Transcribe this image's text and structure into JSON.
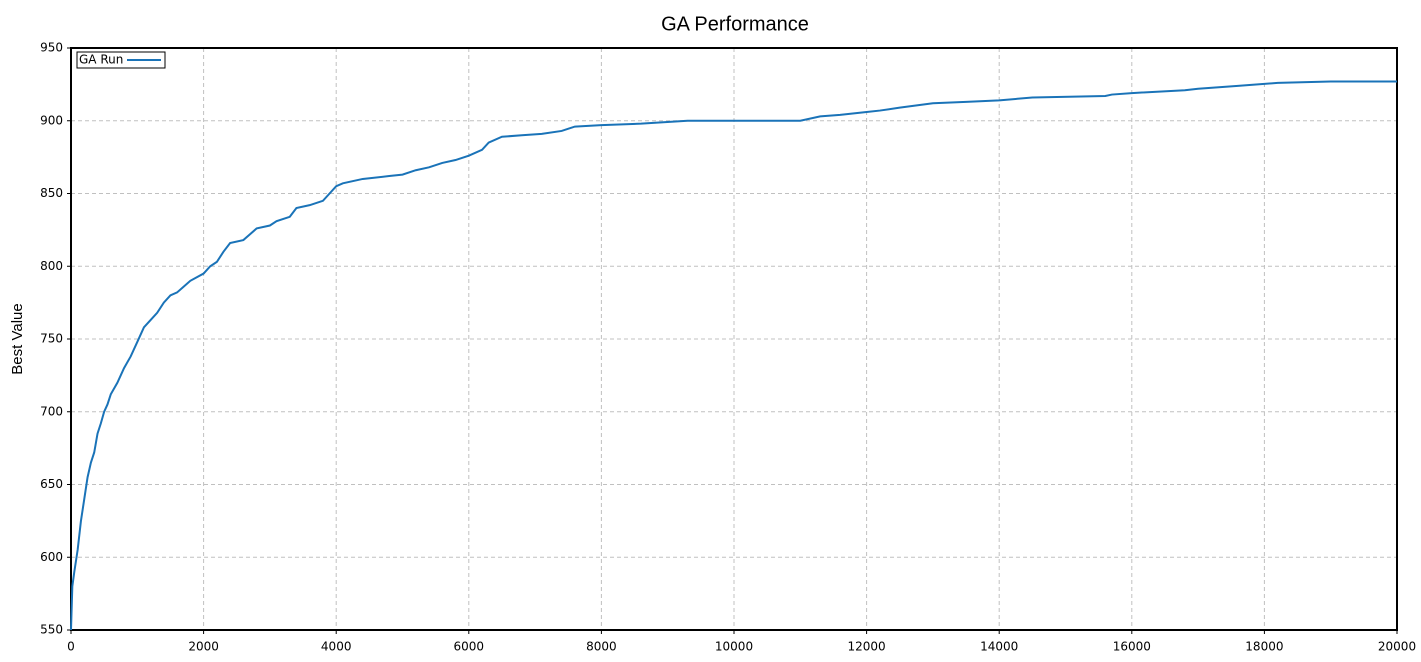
{
  "chart_data": {
    "type": "line",
    "title": "GA Performance",
    "y_label": "Best Value",
    "x": [
      0,
      20,
      50,
      100,
      150,
      200,
      250,
      300,
      350,
      400,
      450,
      500,
      550,
      600,
      700,
      800,
      900,
      1000,
      1100,
      1200,
      1300,
      1400,
      1500,
      1600,
      1700,
      1800,
      2000,
      2100,
      2200,
      2300,
      2400,
      2600,
      2700,
      2800,
      3000,
      3100,
      3300,
      3400,
      3600,
      3800,
      3900,
      4000,
      4100,
      4400,
      4800,
      5000,
      5200,
      5400,
      5600,
      5800,
      6000,
      6200,
      6300,
      6500,
      6800,
      7100,
      7400,
      7600,
      8000,
      8600,
      9300,
      11000,
      11300,
      11600,
      12000,
      12200,
      12500,
      13000,
      13500,
      14000,
      14500,
      15600,
      15700,
      16000,
      16800,
      17000,
      17600,
      18200,
      19000,
      20000
    ],
    "series": [
      {
        "name": "GA Run",
        "color": "#1a73b8",
        "values": [
          550,
          580,
          590,
          605,
          625,
          640,
          655,
          665,
          672,
          685,
          692,
          700,
          705,
          712,
          720,
          730,
          738,
          748,
          758,
          763,
          768,
          775,
          780,
          782,
          786,
          790,
          795,
          800,
          803,
          810,
          816,
          818,
          822,
          826,
          828,
          831,
          834,
          840,
          842,
          845,
          850,
          855,
          857,
          860,
          862,
          863,
          866,
          868,
          871,
          873,
          876,
          880,
          885,
          889,
          890,
          891,
          893,
          896,
          897,
          898,
          900,
          900,
          903,
          904,
          906,
          907,
          909,
          912,
          913,
          914,
          916,
          917,
          918,
          919,
          921,
          922,
          924,
          926,
          927,
          927
        ]
      }
    ],
    "xlim": [
      0,
      20000
    ],
    "xticks": [
      0,
      2000,
      4000,
      6000,
      8000,
      10000,
      12000,
      14000,
      16000,
      18000,
      20000
    ],
    "ylim": [
      550,
      950
    ],
    "yticks": [
      550,
      600,
      650,
      700,
      750,
      800,
      850,
      900,
      950
    ],
    "grid": true,
    "legend": "upper left"
  }
}
